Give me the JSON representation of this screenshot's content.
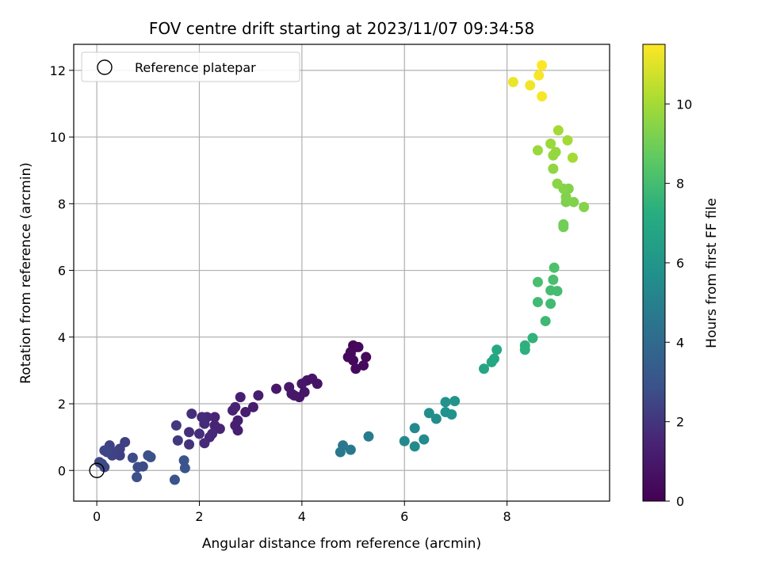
{
  "chart_data": {
    "type": "scatter",
    "title": "FOV centre drift starting at 2023/11/07 09:34:58",
    "xlabel": "Angular distance from reference (arcmin)",
    "ylabel": "Rotation from reference (arcmin)",
    "xlim": [
      -0.45,
      10.0
    ],
    "ylim": [
      -0.92,
      12.78
    ],
    "xticks": [
      0,
      2,
      4,
      6,
      8
    ],
    "yticks": [
      0,
      2,
      4,
      6,
      8,
      10,
      12
    ],
    "grid": true,
    "legend": {
      "placement": "top-left",
      "entries": [
        "Reference platepar"
      ]
    },
    "reference_point": {
      "x": 0,
      "y": 0,
      "label": "Reference platepar"
    },
    "colorbar": {
      "label": "Hours from first FF file",
      "range": [
        0,
        11.5
      ],
      "ticks": [
        0,
        2,
        4,
        6,
        8,
        10
      ],
      "colormap": "viridis"
    },
    "points": [
      {
        "x": 5.0,
        "y": 3.75,
        "c": 0.2
      },
      {
        "x": 5.05,
        "y": 3.7,
        "c": 0.2
      },
      {
        "x": 4.95,
        "y": 3.55,
        "c": 0.2
      },
      {
        "x": 4.9,
        "y": 3.4,
        "c": 0.3
      },
      {
        "x": 5.0,
        "y": 3.3,
        "c": 0.3
      },
      {
        "x": 5.1,
        "y": 3.7,
        "c": 0.3
      },
      {
        "x": 5.25,
        "y": 3.4,
        "c": 0.3
      },
      {
        "x": 5.2,
        "y": 3.15,
        "c": 0.4
      },
      {
        "x": 5.05,
        "y": 3.05,
        "c": 0.4
      },
      {
        "x": 4.95,
        "y": 3.5,
        "c": 0.4
      },
      {
        "x": 4.3,
        "y": 2.6,
        "c": 0.8
      },
      {
        "x": 4.2,
        "y": 2.75,
        "c": 0.8
      },
      {
        "x": 4.1,
        "y": 2.7,
        "c": 0.8
      },
      {
        "x": 4.0,
        "y": 2.6,
        "c": 0.9
      },
      {
        "x": 4.05,
        "y": 2.35,
        "c": 0.9
      },
      {
        "x": 3.95,
        "y": 2.2,
        "c": 0.9
      },
      {
        "x": 3.85,
        "y": 2.25,
        "c": 1.0
      },
      {
        "x": 3.75,
        "y": 2.5,
        "c": 1.0
      },
      {
        "x": 3.8,
        "y": 2.3,
        "c": 1.0
      },
      {
        "x": 3.5,
        "y": 2.45,
        "c": 1.0
      },
      {
        "x": 3.15,
        "y": 2.25,
        "c": 1.2
      },
      {
        "x": 3.05,
        "y": 1.9,
        "c": 1.2
      },
      {
        "x": 2.9,
        "y": 1.75,
        "c": 1.2
      },
      {
        "x": 2.8,
        "y": 2.2,
        "c": 1.3
      },
      {
        "x": 2.75,
        "y": 1.5,
        "c": 1.3
      },
      {
        "x": 2.75,
        "y": 1.2,
        "c": 1.3
      },
      {
        "x": 2.7,
        "y": 1.35,
        "c": 1.3
      },
      {
        "x": 2.65,
        "y": 1.8,
        "c": 1.4
      },
      {
        "x": 2.7,
        "y": 1.9,
        "c": 1.4
      },
      {
        "x": 2.4,
        "y": 1.25,
        "c": 1.5
      },
      {
        "x": 2.3,
        "y": 1.6,
        "c": 1.5
      },
      {
        "x": 2.3,
        "y": 1.35,
        "c": 1.5
      },
      {
        "x": 2.25,
        "y": 1.1,
        "c": 1.6
      },
      {
        "x": 2.2,
        "y": 1.0,
        "c": 1.6
      },
      {
        "x": 2.15,
        "y": 1.6,
        "c": 1.6
      },
      {
        "x": 2.05,
        "y": 1.6,
        "c": 1.7
      },
      {
        "x": 2.1,
        "y": 1.4,
        "c": 1.7
      },
      {
        "x": 2.1,
        "y": 0.82,
        "c": 1.7
      },
      {
        "x": 2.0,
        "y": 1.1,
        "c": 1.8
      },
      {
        "x": 1.85,
        "y": 1.7,
        "c": 1.8
      },
      {
        "x": 1.8,
        "y": 1.15,
        "c": 1.8
      },
      {
        "x": 1.8,
        "y": 0.78,
        "c": 1.9
      },
      {
        "x": 1.55,
        "y": 1.35,
        "c": 2.1
      },
      {
        "x": 1.58,
        "y": 0.9,
        "c": 2.1
      },
      {
        "x": 0.55,
        "y": 0.85,
        "c": 2.3
      },
      {
        "x": 0.45,
        "y": 0.65,
        "c": 2.3
      },
      {
        "x": 0.45,
        "y": 0.45,
        "c": 2.3
      },
      {
        "x": 0.35,
        "y": 0.55,
        "c": 2.4
      },
      {
        "x": 0.3,
        "y": 0.45,
        "c": 2.4
      },
      {
        "x": 0.25,
        "y": 0.75,
        "c": 2.4
      },
      {
        "x": 0.2,
        "y": 0.55,
        "c": 2.5
      },
      {
        "x": 0.15,
        "y": 0.6,
        "c": 2.5
      },
      {
        "x": 0.15,
        "y": 0.1,
        "c": 2.6
      },
      {
        "x": 0.1,
        "y": 0.2,
        "c": 2.6
      },
      {
        "x": 0.05,
        "y": 0.25,
        "c": 2.6
      },
      {
        "x": 0.7,
        "y": 0.38,
        "c": 2.7
      },
      {
        "x": 0.8,
        "y": 0.1,
        "c": 2.7
      },
      {
        "x": 0.9,
        "y": 0.12,
        "c": 2.7
      },
      {
        "x": 0.78,
        "y": -0.2,
        "c": 2.8
      },
      {
        "x": 1.0,
        "y": 0.45,
        "c": 2.8
      },
      {
        "x": 1.05,
        "y": 0.4,
        "c": 2.8
      },
      {
        "x": 1.7,
        "y": 0.3,
        "c": 3.0
      },
      {
        "x": 1.72,
        "y": 0.07,
        "c": 3.0
      },
      {
        "x": 1.52,
        "y": -0.28,
        "c": 3.0
      },
      {
        "x": 4.8,
        "y": 0.75,
        "c": 4.6
      },
      {
        "x": 4.75,
        "y": 0.55,
        "c": 4.6
      },
      {
        "x": 4.95,
        "y": 0.62,
        "c": 4.7
      },
      {
        "x": 5.3,
        "y": 1.02,
        "c": 4.8
      },
      {
        "x": 6.0,
        "y": 0.88,
        "c": 5.4
      },
      {
        "x": 6.2,
        "y": 1.27,
        "c": 5.4
      },
      {
        "x": 6.2,
        "y": 0.72,
        "c": 5.5
      },
      {
        "x": 6.38,
        "y": 0.93,
        "c": 5.5
      },
      {
        "x": 6.48,
        "y": 1.72,
        "c": 5.6
      },
      {
        "x": 6.62,
        "y": 1.55,
        "c": 5.6
      },
      {
        "x": 6.8,
        "y": 2.05,
        "c": 5.8
      },
      {
        "x": 6.8,
        "y": 1.75,
        "c": 5.8
      },
      {
        "x": 6.92,
        "y": 1.68,
        "c": 5.8
      },
      {
        "x": 6.98,
        "y": 2.08,
        "c": 5.9
      },
      {
        "x": 7.55,
        "y": 3.05,
        "c": 6.8
      },
      {
        "x": 7.7,
        "y": 3.25,
        "c": 6.9
      },
      {
        "x": 7.75,
        "y": 3.35,
        "c": 6.9
      },
      {
        "x": 7.8,
        "y": 3.62,
        "c": 7.0
      },
      {
        "x": 8.35,
        "y": 3.62,
        "c": 7.4
      },
      {
        "x": 8.35,
        "y": 3.75,
        "c": 7.4
      },
      {
        "x": 8.5,
        "y": 3.97,
        "c": 7.5
      },
      {
        "x": 8.75,
        "y": 4.48,
        "c": 7.8
      },
      {
        "x": 8.85,
        "y": 5.0,
        "c": 7.9
      },
      {
        "x": 8.6,
        "y": 5.05,
        "c": 7.9
      },
      {
        "x": 8.85,
        "y": 5.4,
        "c": 8.0
      },
      {
        "x": 8.98,
        "y": 5.38,
        "c": 8.0
      },
      {
        "x": 8.9,
        "y": 5.72,
        "c": 8.1
      },
      {
        "x": 8.6,
        "y": 5.65,
        "c": 8.1
      },
      {
        "x": 8.92,
        "y": 6.08,
        "c": 8.2
      },
      {
        "x": 9.1,
        "y": 7.38,
        "c": 9.0
      },
      {
        "x": 9.1,
        "y": 7.3,
        "c": 9.0
      },
      {
        "x": 9.15,
        "y": 8.05,
        "c": 9.2
      },
      {
        "x": 9.15,
        "y": 8.2,
        "c": 9.3
      },
      {
        "x": 9.2,
        "y": 8.45,
        "c": 9.3
      },
      {
        "x": 9.3,
        "y": 8.05,
        "c": 9.3
      },
      {
        "x": 9.5,
        "y": 7.9,
        "c": 9.4
      },
      {
        "x": 9.1,
        "y": 8.45,
        "c": 9.4
      },
      {
        "x": 8.98,
        "y": 8.6,
        "c": 9.5
      },
      {
        "x": 8.9,
        "y": 9.05,
        "c": 9.6
      },
      {
        "x": 8.9,
        "y": 9.45,
        "c": 9.7
      },
      {
        "x": 8.95,
        "y": 9.55,
        "c": 9.7
      },
      {
        "x": 8.85,
        "y": 9.8,
        "c": 9.8
      },
      {
        "x": 8.6,
        "y": 9.6,
        "c": 9.8
      },
      {
        "x": 9.0,
        "y": 10.2,
        "c": 10.0
      },
      {
        "x": 9.18,
        "y": 9.9,
        "c": 10.0
      },
      {
        "x": 9.28,
        "y": 9.38,
        "c": 10.0
      },
      {
        "x": 8.12,
        "y": 11.65,
        "c": 11.2
      },
      {
        "x": 8.45,
        "y": 11.55,
        "c": 11.3
      },
      {
        "x": 8.62,
        "y": 11.85,
        "c": 11.4
      },
      {
        "x": 8.68,
        "y": 12.15,
        "c": 11.5
      },
      {
        "x": 8.68,
        "y": 11.22,
        "c": 11.4
      }
    ]
  }
}
